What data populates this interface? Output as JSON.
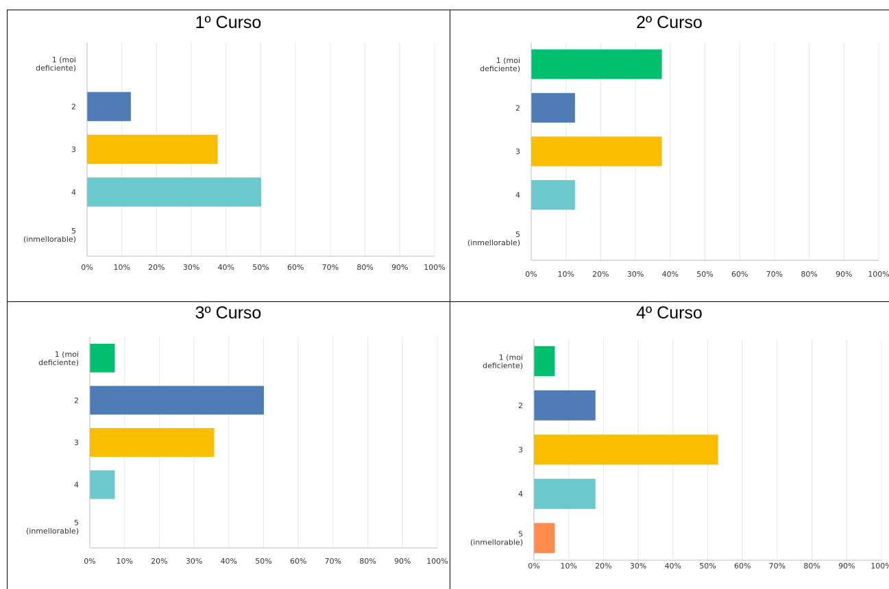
{
  "colors": {
    "green": "#00BF6F",
    "blue": "#507CB6",
    "yellow": "#F9BE00",
    "teal": "#6BC8CD",
    "orange": "#FF8B4F",
    "grid": "#E8E8E8",
    "axis": "#BDBDBD"
  },
  "chart_data": [
    {
      "type": "bar",
      "orientation": "horizontal",
      "title": "1º Curso",
      "categories": [
        [
          "1 (moi",
          "deficiente)"
        ],
        [
          "2"
        ],
        [
          "3"
        ],
        [
          "4"
        ],
        [
          "5",
          "(inmellorable)"
        ]
      ],
      "values": [
        0,
        12.5,
        37.5,
        50,
        0
      ],
      "bar_colors": [
        "#00BF6F",
        "#507CB6",
        "#F9BE00",
        "#6BC8CD",
        "#FF8B4F"
      ],
      "xlim": [
        0,
        100
      ],
      "xticks": [
        "0%",
        "10%",
        "20%",
        "30%",
        "40%",
        "50%",
        "60%",
        "70%",
        "80%",
        "90%",
        "100%"
      ],
      "grid": true
    },
    {
      "type": "bar",
      "orientation": "horizontal",
      "title": "2º Curso",
      "categories": [
        [
          "1 (moi",
          "deficiente)"
        ],
        [
          "2"
        ],
        [
          "3"
        ],
        [
          "4"
        ],
        [
          "5",
          "(inmellorable)"
        ]
      ],
      "values": [
        37.5,
        12.5,
        37.5,
        12.5,
        0
      ],
      "bar_colors": [
        "#00BF6F",
        "#507CB6",
        "#F9BE00",
        "#6BC8CD",
        "#FF8B4F"
      ],
      "xlim": [
        0,
        100
      ],
      "xticks": [
        "0%",
        "10%",
        "20%",
        "30%",
        "40%",
        "50%",
        "60%",
        "70%",
        "80%",
        "90%",
        "100%"
      ],
      "grid": true
    },
    {
      "type": "bar",
      "orientation": "horizontal",
      "title": "3º Curso",
      "categories": [
        [
          "1 (moi",
          "deficiente)"
        ],
        [
          "2"
        ],
        [
          "3"
        ],
        [
          "4"
        ],
        [
          "5",
          "(inmellorable)"
        ]
      ],
      "values": [
        7.1,
        50,
        35.7,
        7.1,
        0
      ],
      "bar_colors": [
        "#00BF6F",
        "#507CB6",
        "#F9BE00",
        "#6BC8CD",
        "#FF8B4F"
      ],
      "xlim": [
        0,
        100
      ],
      "xticks": [
        "0%",
        "10%",
        "20%",
        "30%",
        "40%",
        "50%",
        "60%",
        "70%",
        "80%",
        "90%",
        "100%"
      ],
      "grid": true
    },
    {
      "type": "bar",
      "orientation": "horizontal",
      "title": "4º Curso",
      "categories": [
        [
          "1 (moi",
          "deficiente)"
        ],
        [
          "2"
        ],
        [
          "3"
        ],
        [
          "4"
        ],
        [
          "5",
          "(inmellorable)"
        ]
      ],
      "values": [
        5.9,
        17.6,
        52.9,
        17.6,
        5.9
      ],
      "bar_colors": [
        "#00BF6F",
        "#507CB6",
        "#F9BE00",
        "#6BC8CD",
        "#FF8B4F"
      ],
      "xlim": [
        0,
        100
      ],
      "xticks": [
        "0%",
        "10%",
        "20%",
        "30%",
        "40%",
        "50%",
        "60%",
        "70%",
        "80%",
        "90%",
        "100%"
      ],
      "grid": true
    }
  ]
}
